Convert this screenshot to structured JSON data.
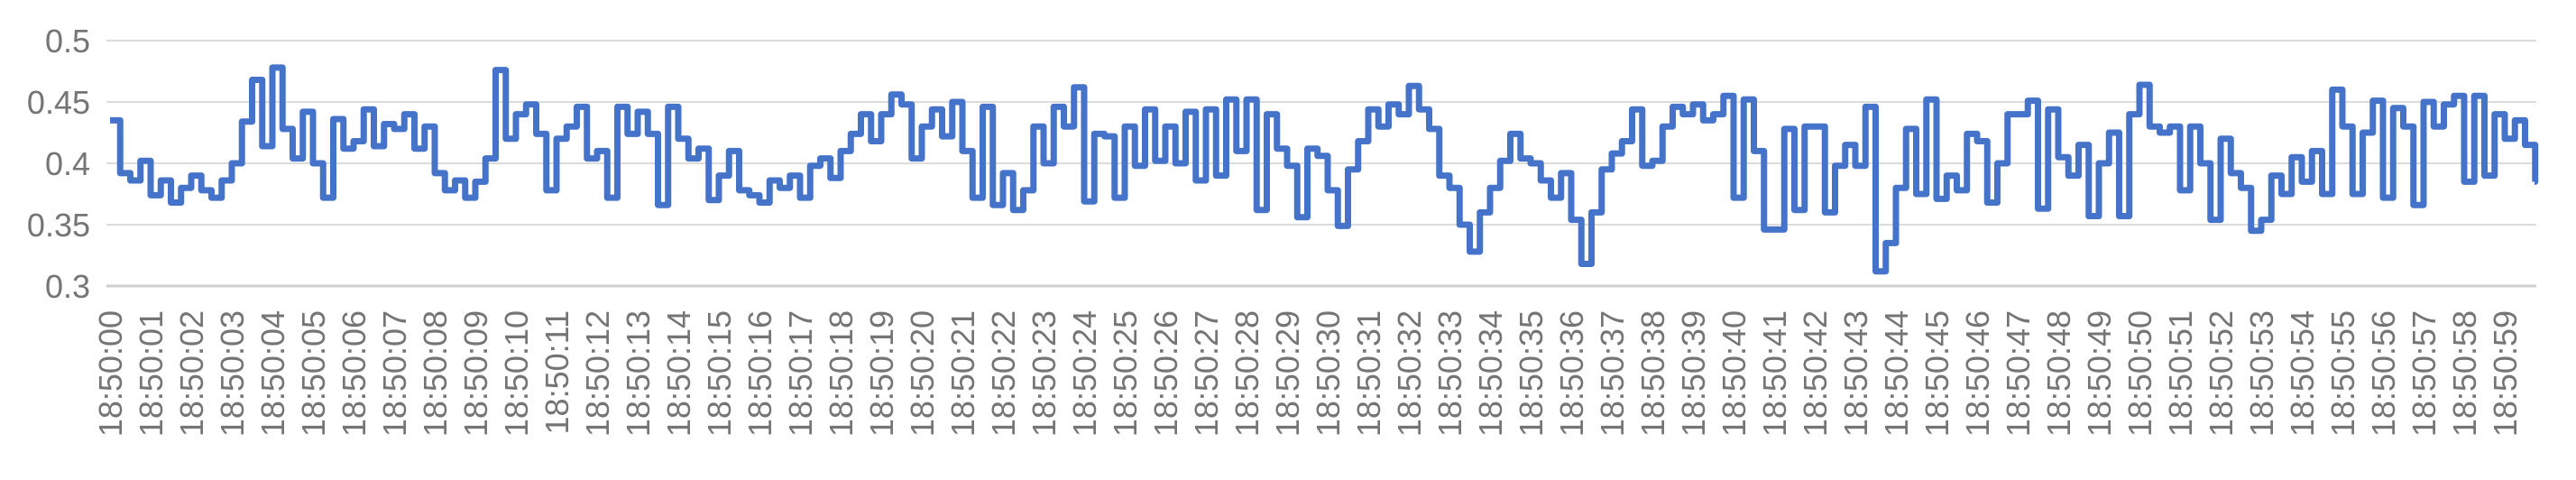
{
  "chart_data": {
    "type": "line",
    "interpolation": "step-after",
    "title": "",
    "xlabel": "",
    "ylabel": "",
    "legend": "none",
    "grid": "on",
    "background_color": "#ffffff",
    "series_color": "#4473C9",
    "grid_color": "#dcdcdc",
    "baseline_grid_color": "#cfcfcf",
    "axis_label_color": "#757575",
    "ylim": [
      0.3,
      0.5
    ],
    "y_ticks": [
      0.5,
      0.45,
      0.4,
      0.35,
      0.3
    ],
    "y_tick_labels": [
      "0.5",
      "0.45",
      "0.4",
      "0.35",
      "0.3"
    ],
    "x_tick_labels": [
      "18:50:00",
      "18:50:01",
      "18:50:02",
      "18:50:03",
      "18:50:04",
      "18:50:05",
      "18:50:06",
      "18:50:07",
      "18:50:08",
      "18:50:09",
      "18:50:10",
      "18:50:11",
      "18:50:12",
      "18:50:13",
      "18:50:14",
      "18:50:15",
      "18:50:16",
      "18:50:17",
      "18:50:18",
      "18:50:19",
      "18:50:20",
      "18:50:21",
      "18:50:22",
      "18:50:23",
      "18:50:24",
      "18:50:25",
      "18:50:26",
      "18:50:27",
      "18:50:28",
      "18:50:29",
      "18:50:30",
      "18:50:31",
      "18:50:32",
      "18:50:33",
      "18:50:34",
      "18:50:35",
      "18:50:36",
      "18:50:37",
      "18:50:38",
      "18:50:39",
      "18:50:40",
      "18:50:41",
      "18:50:42",
      "18:50:43",
      "18:50:44",
      "18:50:45",
      "18:50:46",
      "18:50:47",
      "18:50:48",
      "18:50:49",
      "18:50:50",
      "18:50:51",
      "18:50:52",
      "18:50:53",
      "18:50:54",
      "18:50:55",
      "18:50:56",
      "18:50:57",
      "18:50:58",
      "18:50:59"
    ],
    "x_tick_rotation_degrees": -90,
    "samples_per_second": 4,
    "x_start_seconds": 0,
    "values": [
      0.435,
      0.392,
      0.386,
      0.402,
      0.374,
      0.386,
      0.368,
      0.38,
      0.39,
      0.378,
      0.372,
      0.386,
      0.4,
      0.434,
      0.468,
      0.414,
      0.478,
      0.428,
      0.404,
      0.442,
      0.4,
      0.372,
      0.436,
      0.412,
      0.418,
      0.444,
      0.414,
      0.432,
      0.428,
      0.44,
      0.412,
      0.43,
      0.392,
      0.378,
      0.386,
      0.372,
      0.385,
      0.404,
      0.476,
      0.42,
      0.44,
      0.448,
      0.424,
      0.378,
      0.42,
      0.43,
      0.446,
      0.404,
      0.41,
      0.372,
      0.446,
      0.424,
      0.442,
      0.424,
      0.366,
      0.446,
      0.42,
      0.404,
      0.412,
      0.37,
      0.39,
      0.41,
      0.378,
      0.374,
      0.368,
      0.386,
      0.38,
      0.39,
      0.372,
      0.398,
      0.404,
      0.388,
      0.41,
      0.424,
      0.44,
      0.418,
      0.44,
      0.456,
      0.448,
      0.404,
      0.43,
      0.444,
      0.422,
      0.45,
      0.41,
      0.372,
      0.446,
      0.366,
      0.392,
      0.362,
      0.378,
      0.43,
      0.4,
      0.446,
      0.43,
      0.462,
      0.369,
      0.424,
      0.422,
      0.372,
      0.43,
      0.398,
      0.444,
      0.402,
      0.43,
      0.4,
      0.442,
      0.386,
      0.444,
      0.39,
      0.452,
      0.41,
      0.452,
      0.362,
      0.44,
      0.412,
      0.398,
      0.356,
      0.412,
      0.406,
      0.378,
      0.349,
      0.395,
      0.418,
      0.444,
      0.43,
      0.448,
      0.44,
      0.463,
      0.444,
      0.428,
      0.39,
      0.38,
      0.35,
      0.328,
      0.36,
      0.38,
      0.402,
      0.424,
      0.404,
      0.4,
      0.386,
      0.372,
      0.392,
      0.354,
      0.318,
      0.36,
      0.395,
      0.408,
      0.418,
      0.444,
      0.398,
      0.402,
      0.43,
      0.446,
      0.44,
      0.448,
      0.435,
      0.44,
      0.455,
      0.372,
      0.452,
      0.41,
      0.346,
      0.346,
      0.428,
      0.362,
      0.43,
      0.43,
      0.36,
      0.398,
      0.415,
      0.398,
      0.446,
      0.312,
      0.335,
      0.38,
      0.428,
      0.375,
      0.452,
      0.371,
      0.39,
      0.378,
      0.424,
      0.418,
      0.368,
      0.4,
      0.44,
      0.44,
      0.451,
      0.363,
      0.444,
      0.405,
      0.39,
      0.415,
      0.357,
      0.4,
      0.425,
      0.357,
      0.44,
      0.464,
      0.43,
      0.425,
      0.43,
      0.378,
      0.43,
      0.4,
      0.354,
      0.42,
      0.392,
      0.38,
      0.345,
      0.354,
      0.39,
      0.375,
      0.405,
      0.385,
      0.41,
      0.375,
      0.46,
      0.43,
      0.375,
      0.425,
      0.451,
      0.372,
      0.445,
      0.43,
      0.366,
      0.45,
      0.43,
      0.448,
      0.455,
      0.385,
      0.455,
      0.39,
      0.44,
      0.42,
      0.435,
      0.415,
      0.385
    ]
  }
}
